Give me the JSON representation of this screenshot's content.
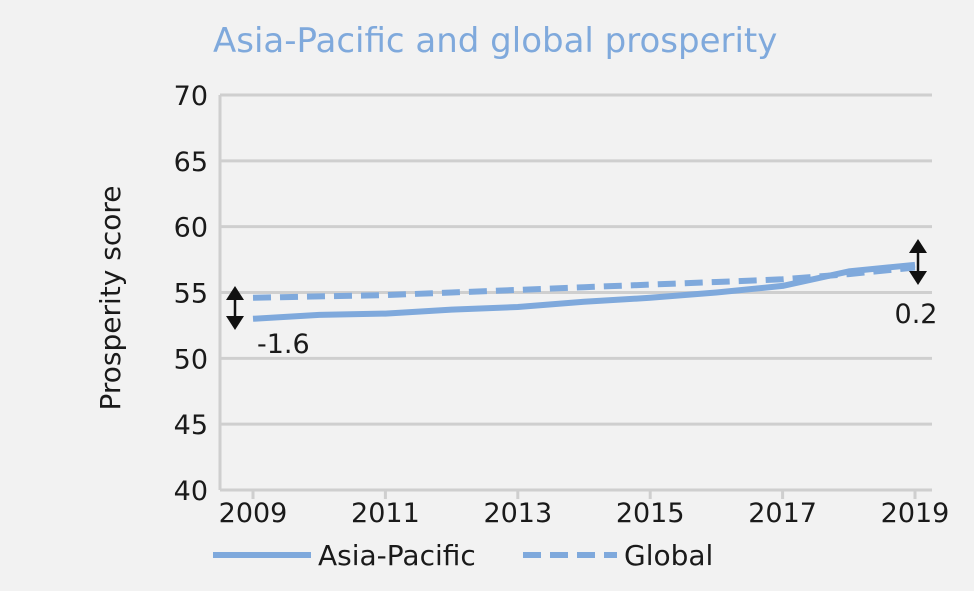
{
  "chart_data": {
    "type": "line",
    "title": "Asia-Pacific and global prosperity",
    "ylabel": "Prosperity score",
    "xlabel": "",
    "x": [
      2009,
      2010,
      2011,
      2012,
      2013,
      2014,
      2015,
      2016,
      2017,
      2018,
      2019
    ],
    "x_tick_labels": [
      "2009",
      "2011",
      "2013",
      "2015",
      "2017",
      "2019"
    ],
    "y_tick_labels": [
      "40",
      "45",
      "50",
      "55",
      "60",
      "65",
      "70"
    ],
    "ylim": [
      40,
      70
    ],
    "grid": true,
    "legend_position": "bottom",
    "series": [
      {
        "name": "Asia-Pacific",
        "style": "solid",
        "color": "#7fa9dc",
        "values": [
          53.0,
          53.3,
          53.4,
          53.7,
          53.9,
          54.3,
          54.6,
          55.0,
          55.5,
          56.6,
          57.1
        ]
      },
      {
        "name": "Global",
        "style": "dashed",
        "color": "#7fa9dc",
        "values": [
          54.6,
          54.7,
          54.8,
          55.0,
          55.2,
          55.4,
          55.6,
          55.8,
          56.0,
          56.4,
          56.9
        ]
      }
    ],
    "annotations": [
      {
        "year": 2009,
        "text": "-1.6"
      },
      {
        "year": 2019,
        "text": "0.2"
      }
    ]
  }
}
